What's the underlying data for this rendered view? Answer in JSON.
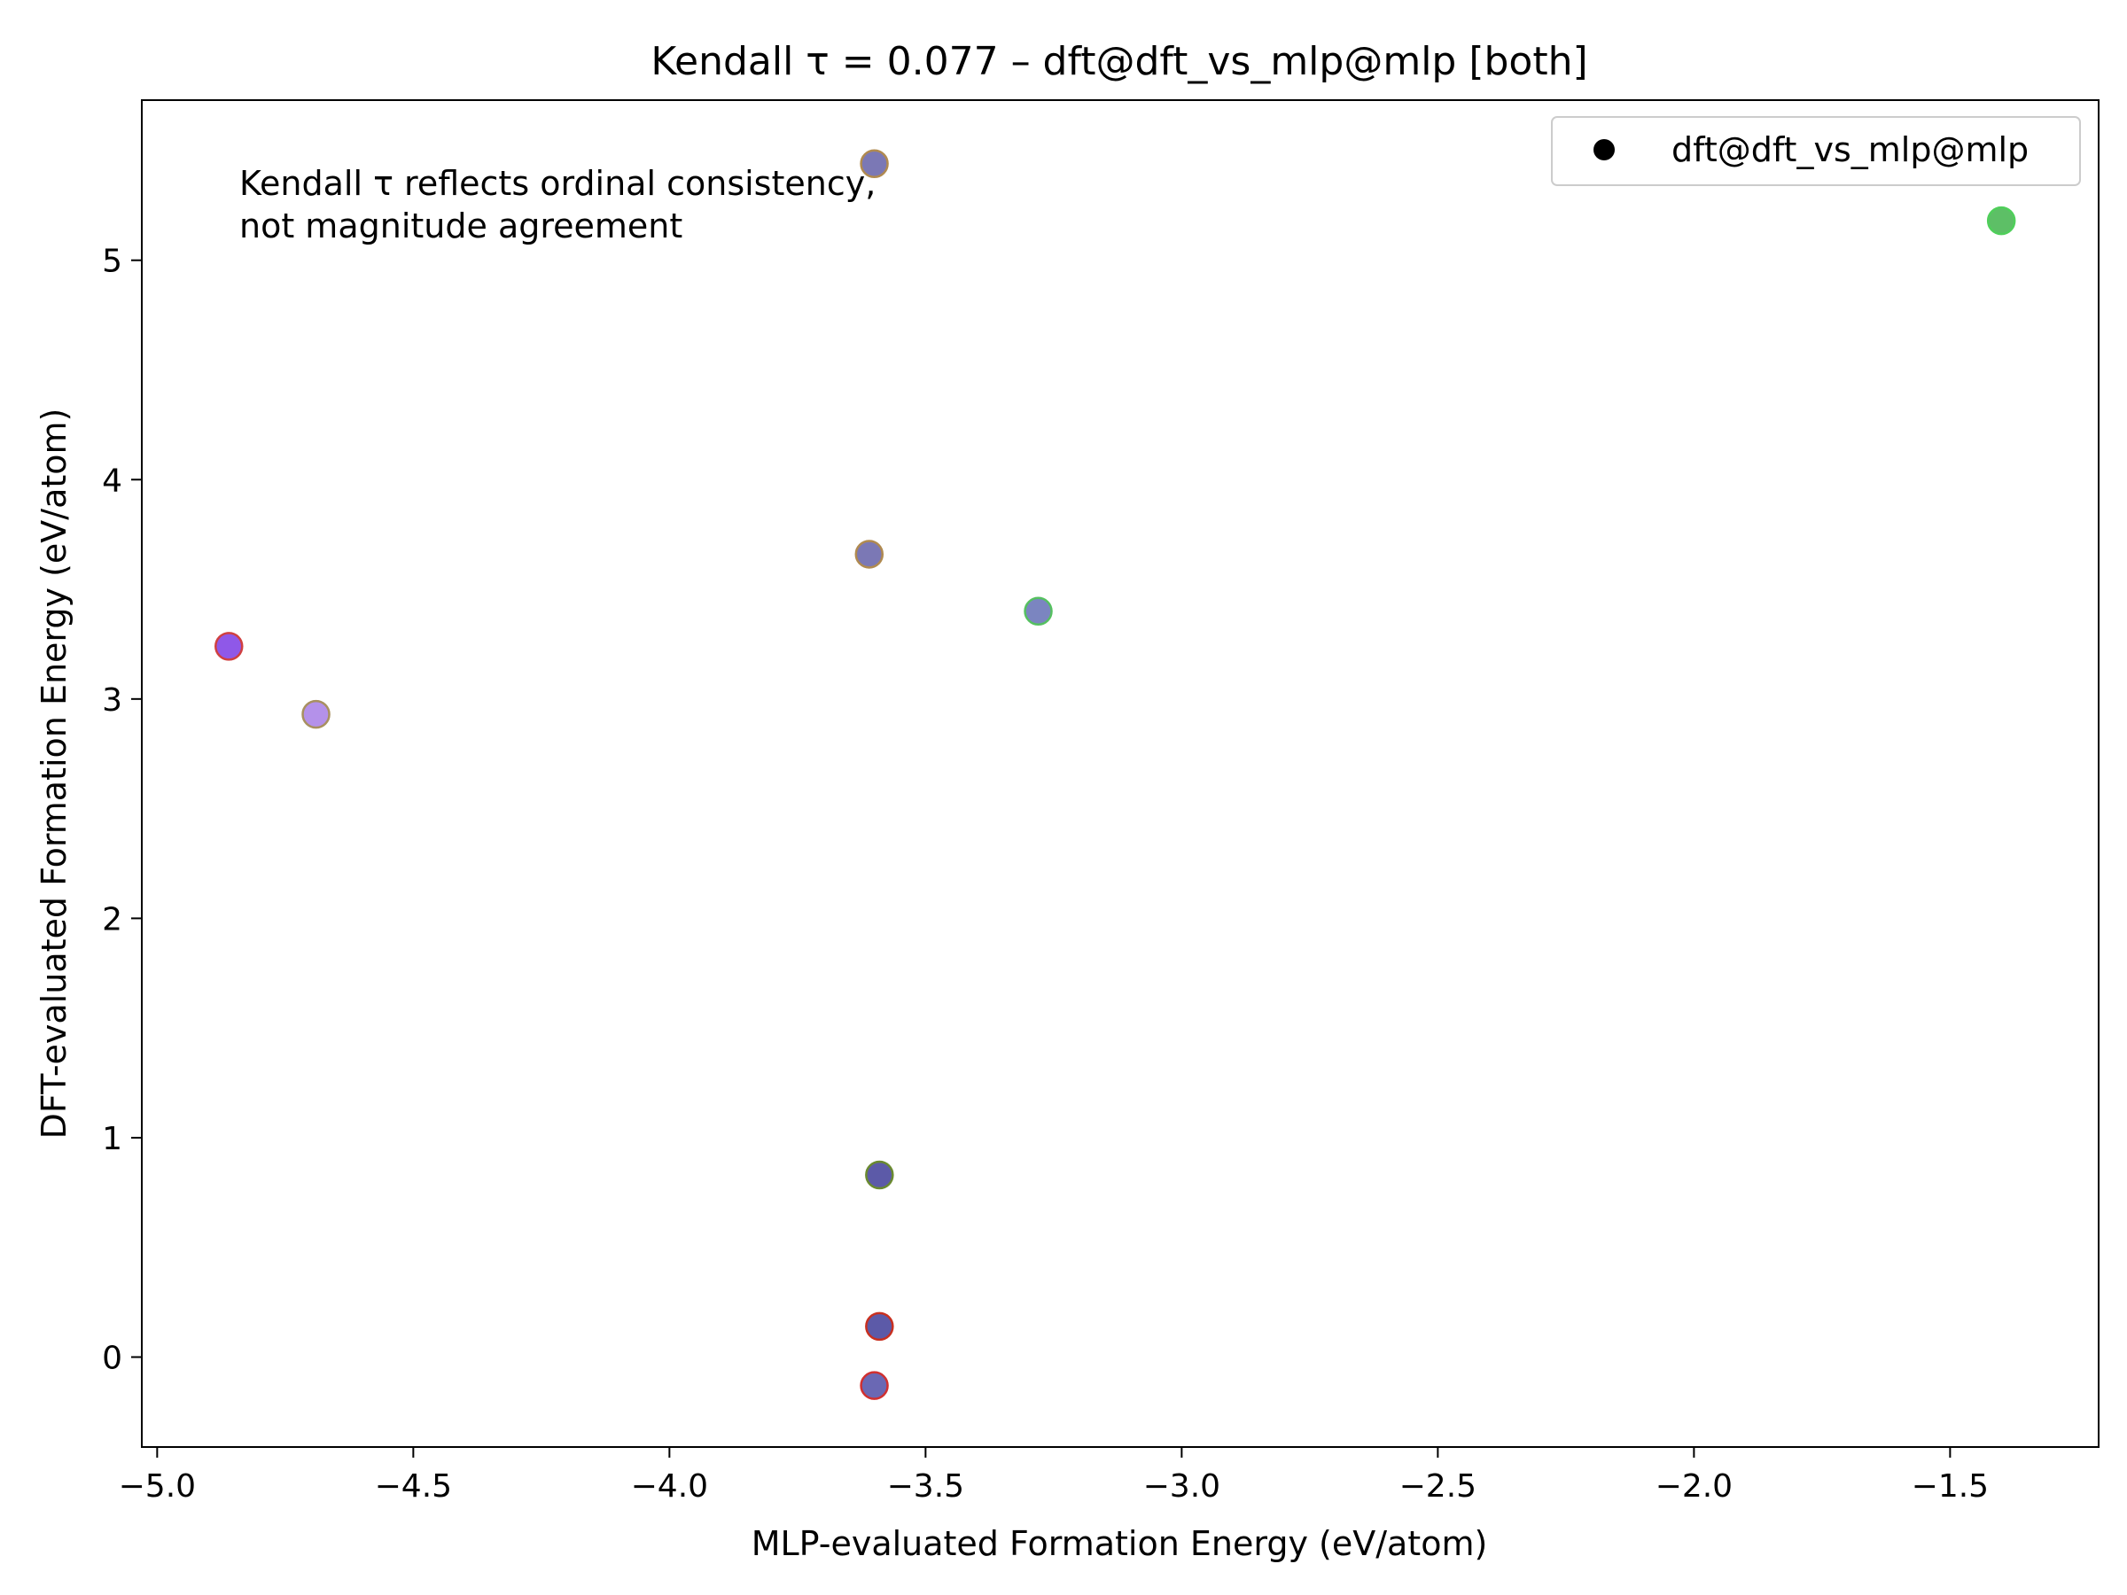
{
  "chart_data": {
    "type": "scatter",
    "title": "Kendall τ = 0.077 – dft@dft_vs_mlp@mlp [both]",
    "xlabel": "MLP-evaluated Formation Energy (eV/atom)",
    "ylabel": "DFT-evaluated Formation Energy (eV/atom)",
    "xlim": [
      -5.03,
      -1.21
    ],
    "ylim": [
      -0.41,
      5.73
    ],
    "xticks": [
      -5.0,
      -4.5,
      -4.0,
      -3.5,
      -3.0,
      -2.5,
      -2.0,
      -1.5
    ],
    "xtick_labels": [
      "−5.0",
      "−4.5",
      "−4.0",
      "−3.5",
      "−3.0",
      "−2.5",
      "−2.0",
      "−1.5"
    ],
    "yticks": [
      0,
      1,
      2,
      3,
      4,
      5
    ],
    "ytick_labels": [
      "0",
      "1",
      "2",
      "3",
      "4",
      "5"
    ],
    "grid": false,
    "legend": {
      "position": "top-right",
      "entries": [
        "dft@dft_vs_mlp@mlp"
      ]
    },
    "annotation": [
      "Kendall τ reflects ordinal consistency,",
      "not magnitude agreement"
    ],
    "series": [
      {
        "name": "dft@dft_vs_mlp@mlp",
        "points": [
          {
            "x": -3.6,
            "y": 5.44,
            "fill": "#7b78b5",
            "edge": "#b08a50"
          },
          {
            "x": -1.4,
            "y": 5.18,
            "fill": "#5dbf66",
            "edge": "#4fcf5a"
          },
          {
            "x": -3.61,
            "y": 3.66,
            "fill": "#7b78b5",
            "edge": "#b08a50"
          },
          {
            "x": -3.28,
            "y": 3.4,
            "fill": "#7b85c0",
            "edge": "#55c060"
          },
          {
            "x": -4.86,
            "y": 3.24,
            "fill": "#8f58e8",
            "edge": "#d04040"
          },
          {
            "x": -4.69,
            "y": 2.93,
            "fill": "#b491ea",
            "edge": "#a89060"
          },
          {
            "x": -3.59,
            "y": 0.83,
            "fill": "#5c5aa8",
            "edge": "#6a8a30"
          },
          {
            "x": -3.59,
            "y": 0.14,
            "fill": "#5c5aa8",
            "edge": "#c83020"
          },
          {
            "x": -3.6,
            "y": -0.13,
            "fill": "#6a68b4",
            "edge": "#d03030"
          }
        ]
      }
    ]
  }
}
